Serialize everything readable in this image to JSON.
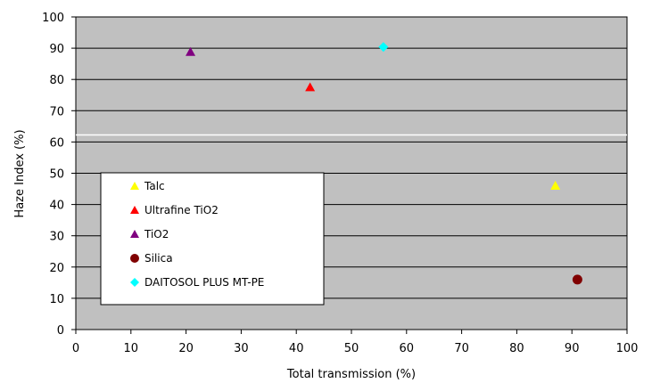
{
  "chart_data": {
    "type": "scatter",
    "xlabel": "Total transmission (%)",
    "ylabel": "Haze Index (%)",
    "xlim": [
      0,
      100
    ],
    "ylim": [
      0,
      100
    ],
    "x_ticks": [
      "0",
      "10",
      "20",
      "30",
      "40",
      "50",
      "60",
      "70",
      "80",
      "90",
      "100"
    ],
    "y_ticks": [
      "0",
      "10",
      "20",
      "30",
      "40",
      "50",
      "60",
      "70",
      "80",
      "90",
      "100"
    ],
    "grid": "horizontal",
    "plot_background": "#c0c0c0",
    "legend_position": "bottom-left",
    "series": [
      {
        "name": "Talc",
        "marker": "triangle",
        "color": "#ffff00",
        "points": [
          {
            "x": 87,
            "y": 46
          }
        ]
      },
      {
        "name": "Ultrafine TiO2",
        "marker": "triangle",
        "color": "#ff0000",
        "points": [
          {
            "x": 42.5,
            "y": 77.5
          }
        ]
      },
      {
        "name": "TiO2",
        "marker": "triangle",
        "color": "#800080",
        "points": [
          {
            "x": 20.8,
            "y": 88.8
          }
        ]
      },
      {
        "name": "Silica",
        "marker": "circle",
        "color": "#800000",
        "points": [
          {
            "x": 91,
            "y": 16
          }
        ]
      },
      {
        "name": "DAITOSOL PLUS MT-PE",
        "marker": "diamond",
        "color": "#00ffff",
        "points": [
          {
            "x": 55.8,
            "y": 90.4
          }
        ]
      }
    ]
  }
}
